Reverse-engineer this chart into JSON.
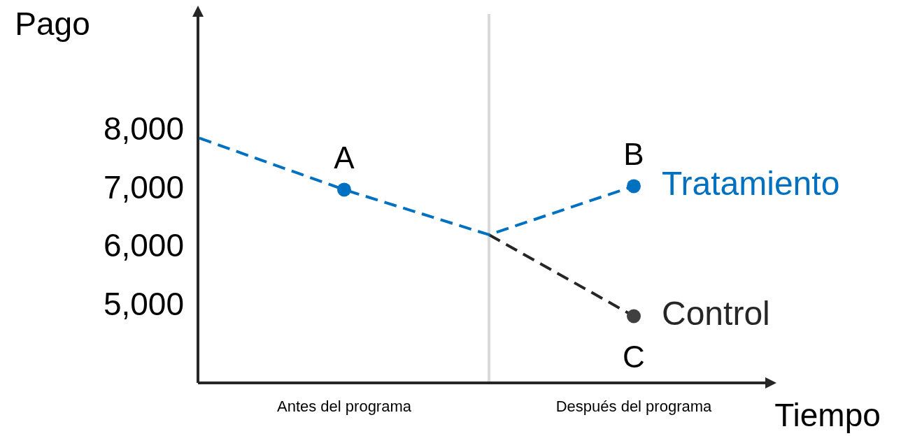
{
  "chart_data": {
    "type": "line",
    "xlabel": "Tiempo",
    "ylabel": "Pago",
    "categories": [
      null,
      "Antes del programa",
      null,
      "Después del programa"
    ],
    "ylim": [
      3700,
      10000
    ],
    "yticks": [
      {
        "value": 5000,
        "label": "5,000"
      },
      {
        "value": 6000,
        "label": "6,000"
      },
      {
        "value": 7000,
        "label": "7,000"
      },
      {
        "value": 8000,
        "label": "8,000"
      }
    ],
    "line_style": "dashed",
    "marker": "none",
    "series": [
      {
        "name": "Control",
        "color": "#262626",
        "values": [
          null,
          null,
          6230,
          4840
        ]
      },
      {
        "name": "Tratamiento",
        "color": "#0070c0",
        "values": [
          7880,
          7000,
          6230,
          7060
        ]
      },
      {
        "type": "scatter",
        "color": "#0070c0",
        "marker": "circle",
        "x": [
          "Antes del programa",
          "Después del programa"
        ],
        "values": [
          7000,
          7060
        ]
      },
      {
        "type": "scatter",
        "color": "#404040",
        "marker": "circle",
        "x": [
          "Después del programa"
        ],
        "values": [
          4840
        ]
      }
    ],
    "annotations": [
      "A",
      "B",
      "C"
    ]
  }
}
